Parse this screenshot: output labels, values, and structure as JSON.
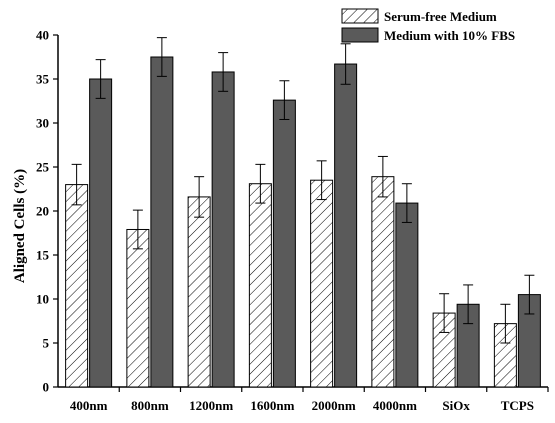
{
  "chart_data": {
    "type": "bar",
    "title": "",
    "xlabel": "",
    "ylabel": "Aligned Cells (%)",
    "ylim": [
      0,
      40
    ],
    "yticks": [
      0,
      5,
      10,
      15,
      20,
      25,
      30,
      35,
      40
    ],
    "categories": [
      "400nm",
      "800nm",
      "1200nm",
      "1600nm",
      "2000nm",
      "4000nm",
      "SiOx",
      "TCPS"
    ],
    "legend_position": "top-right",
    "grid": false,
    "series": [
      {
        "name": "Serum-free Medium",
        "pattern": "hatched",
        "color": "#ffffff",
        "values": [
          23.0,
          17.9,
          21.6,
          23.1,
          23.5,
          23.9,
          8.4,
          7.2
        ],
        "errors": [
          2.3,
          2.2,
          2.3,
          2.2,
          2.2,
          2.3,
          2.2,
          2.2
        ]
      },
      {
        "name": "Medium with 10% FBS",
        "pattern": "solid",
        "color": "#5a5a5a",
        "values": [
          35.0,
          37.5,
          35.8,
          32.6,
          36.7,
          20.9,
          9.4,
          10.5
        ],
        "errors": [
          2.2,
          2.2,
          2.2,
          2.2,
          2.3,
          2.2,
          2.2,
          2.2
        ]
      }
    ]
  }
}
